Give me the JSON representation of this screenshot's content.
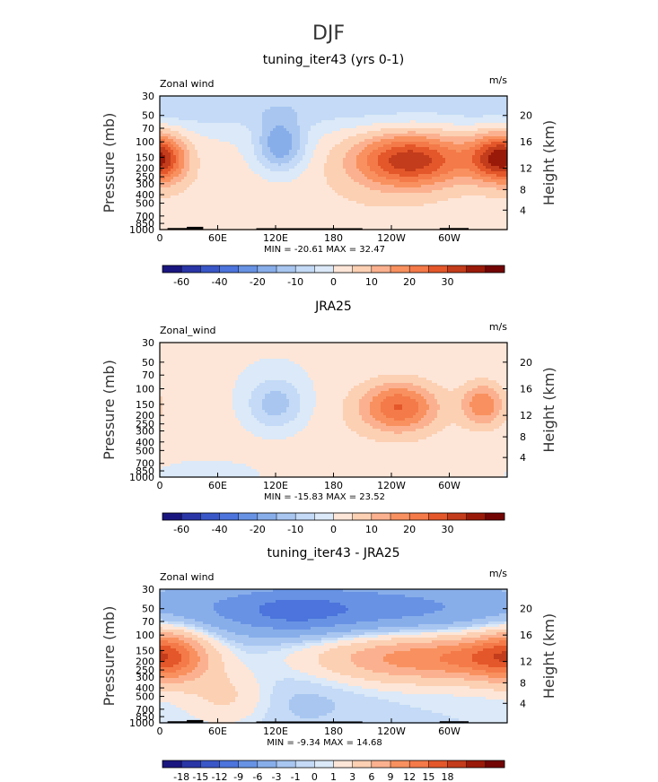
{
  "figure_title": "DJF",
  "colors": {
    "pos": [
      "#fde6d8",
      "#fcd0b3",
      "#fbb18f",
      "#f8915f",
      "#f47a49",
      "#e4572a",
      "#c33c1b",
      "#9a1a09",
      "#730505"
    ],
    "neg": [
      "#dbe9f8",
      "#c4daf6",
      "#a8c6f0",
      "#88aeea",
      "#6893e4",
      "#4c74dc",
      "#3a57c8",
      "#2a36a6",
      "#1a1680"
    ],
    "topo": "#000000",
    "frame": "#000000",
    "zero": "#ffffff"
  },
  "chart_data": [
    {
      "type": "heatmap",
      "title": "tuning_iter43 (yrs 0-1)",
      "left_label": "Zonal wind",
      "right_label": "m/s",
      "ylabel": "Pressure (mb)",
      "ylabel2": "Height (km)",
      "x_ticks": [
        "0",
        "60E",
        "120E",
        "180",
        "120W",
        "60W"
      ],
      "x_range": [
        0,
        360
      ],
      "x_tick_values": [
        0,
        60,
        120,
        180,
        240,
        300
      ],
      "y_ticks": [
        "30",
        "50",
        "70",
        "100",
        "150",
        "200",
        "250",
        "300",
        "400",
        "500",
        "700",
        "850",
        "1000"
      ],
      "y_tick_values": [
        30,
        50,
        70,
        100,
        150,
        200,
        250,
        300,
        400,
        500,
        700,
        850,
        1000
      ],
      "y_range": [
        30,
        1000
      ],
      "height_ticks": [
        "20",
        "16",
        "12",
        "8",
        "4"
      ],
      "height_tick_pressures": [
        50,
        100,
        200,
        350,
        600
      ],
      "stats": "MIN = -20.61   MAX =  32.47",
      "colorbar_labels": [
        "-60",
        "-40",
        "-20",
        "-10",
        "0",
        "10",
        "20",
        "30"
      ],
      "colorbar_levels": [
        -70,
        -60,
        -50,
        -40,
        -30,
        -20,
        -15,
        -10,
        -5,
        0,
        5,
        10,
        15,
        20,
        25,
        30,
        35
      ],
      "blobs": [
        {
          "lon": 260,
          "p": 160,
          "sx": 42,
          "sp": 0.5,
          "v": 32
        },
        {
          "lon": 350,
          "p": 150,
          "sx": 22,
          "sp": 0.45,
          "v": 27
        },
        {
          "lon": 5,
          "p": 160,
          "sx": 18,
          "sp": 0.45,
          "v": 12
        },
        {
          "lon": 125,
          "p": 110,
          "sx": 18,
          "sp": 0.5,
          "v": -20
        },
        {
          "lon": 220,
          "p": 450,
          "sx": 80,
          "sp": 0.9,
          "v": 4
        },
        {
          "lon": 60,
          "p": 500,
          "sx": 50,
          "sp": 0.9,
          "v": 3
        },
        {
          "lon": 100,
          "p": 40,
          "sx": 120,
          "sp": 0.4,
          "v": -6
        },
        {
          "lon": 300,
          "p": 40,
          "sx": 120,
          "sp": 0.4,
          "v": -5
        }
      ]
    },
    {
      "type": "heatmap",
      "title": "JRA25",
      "left_label": "Zonal_wind",
      "right_label": "m/s",
      "ylabel": "Pressure (mb)",
      "ylabel2": "Height (km)",
      "x_ticks": [
        "0",
        "60E",
        "120E",
        "180",
        "120W",
        "60W"
      ],
      "x_range": [
        0,
        360
      ],
      "x_tick_values": [
        0,
        60,
        120,
        180,
        240,
        300
      ],
      "y_ticks": [
        "30",
        "50",
        "70",
        "100",
        "150",
        "200",
        "250",
        "300",
        "400",
        "500",
        "700",
        "850",
        "1000"
      ],
      "y_tick_values": [
        30,
        50,
        70,
        100,
        150,
        200,
        250,
        300,
        400,
        500,
        700,
        850,
        1000
      ],
      "y_range": [
        30,
        1000
      ],
      "height_ticks": [
        "20",
        "16",
        "12",
        "8",
        "4"
      ],
      "height_tick_pressures": [
        50,
        100,
        200,
        350,
        600
      ],
      "stats": "MIN = -15.83   MAX =  23.52",
      "colorbar_labels": [
        "-60",
        "-40",
        "-20",
        "-10",
        "0",
        "10",
        "20",
        "30"
      ],
      "colorbar_levels": [
        -70,
        -60,
        -50,
        -40,
        -30,
        -20,
        -15,
        -10,
        -5,
        0,
        5,
        10,
        15,
        20,
        25,
        30,
        35
      ],
      "blobs": [
        {
          "lon": 248,
          "p": 160,
          "sx": 28,
          "sp": 0.45,
          "v": 23
        },
        {
          "lon": 335,
          "p": 150,
          "sx": 16,
          "sp": 0.4,
          "v": 18
        },
        {
          "lon": 120,
          "p": 150,
          "sx": 22,
          "sp": 0.5,
          "v": -15
        },
        {
          "lon": 180,
          "p": 300,
          "sx": 140,
          "sp": 1.2,
          "v": 3
        },
        {
          "lon": 60,
          "p": 900,
          "sx": 40,
          "sp": 0.3,
          "v": -3
        }
      ]
    },
    {
      "type": "heatmap",
      "title": "tuning_iter43 - JRA25",
      "left_label": "Zonal wind",
      "right_label": "m/s",
      "ylabel": "Pressure (mb)",
      "ylabel2": "Height (km)",
      "x_ticks": [
        "0",
        "60E",
        "120E",
        "180",
        "120W",
        "60W"
      ],
      "x_range": [
        0,
        360
      ],
      "x_tick_values": [
        0,
        60,
        120,
        180,
        240,
        300
      ],
      "y_ticks": [
        "30",
        "50",
        "70",
        "100",
        "150",
        "200",
        "250",
        "300",
        "400",
        "500",
        "700",
        "850",
        "1000"
      ],
      "y_tick_values": [
        30,
        50,
        70,
        100,
        150,
        200,
        250,
        300,
        400,
        500,
        700,
        850,
        1000
      ],
      "y_range": [
        30,
        1000
      ],
      "height_ticks": [
        "20",
        "16",
        "12",
        "8",
        "4"
      ],
      "height_tick_pressures": [
        50,
        100,
        200,
        350,
        600
      ],
      "stats": "MIN =   -9.34   MAX =  14.68",
      "colorbar_labels": [
        "-18",
        "-15",
        "-12",
        "-9",
        "-6",
        "-3",
        "-1",
        "0",
        "1",
        "3",
        "6",
        "9",
        "12",
        "15",
        "18"
      ],
      "colorbar_levels": [
        -21,
        -18,
        -15,
        -12,
        -9,
        -6,
        -3,
        -1,
        0,
        1,
        3,
        6,
        9,
        12,
        15,
        18,
        21
      ],
      "blobs": [
        {
          "lon": 10,
          "p": 170,
          "sx": 28,
          "sp": 0.5,
          "v": 12
        },
        {
          "lon": 270,
          "p": 180,
          "sx": 75,
          "sp": 0.45,
          "v": 11
        },
        {
          "lon": 330,
          "p": 175,
          "sx": 30,
          "sp": 0.4,
          "v": 4
        },
        {
          "lon": 180,
          "p": 50,
          "sx": 160,
          "sp": 0.55,
          "v": -8
        },
        {
          "lon": 140,
          "p": 55,
          "sx": 40,
          "sp": 0.4,
          "v": -3
        },
        {
          "lon": 70,
          "p": 500,
          "sx": 30,
          "sp": 0.5,
          "v": 4
        },
        {
          "lon": 140,
          "p": 500,
          "sx": 60,
          "sp": 0.7,
          "v": -1.5
        }
      ]
    }
  ]
}
